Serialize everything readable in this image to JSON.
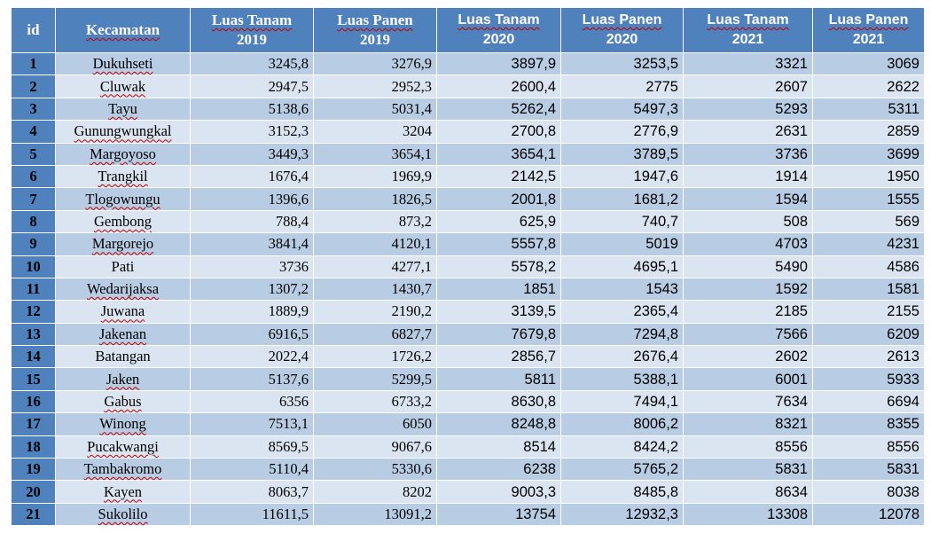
{
  "table": {
    "headers": {
      "id": "id",
      "kecamatan": "Kecamatan",
      "lt2019_a": "Luas Tanam",
      "lt2019_b": "2019",
      "lp2019_a": "Luas Panen",
      "lp2019_b": "2019",
      "lt2020_a": "Luas Tanam",
      "lt2020_b": "2020",
      "lp2020_a": "Luas Panen",
      "lp2020_b": "2020",
      "lt2021_a": "Luas Tanam",
      "lt2021_b": "2021",
      "lp2021_a": "Luas Panen",
      "lp2021_b": "2021"
    },
    "rows": [
      {
        "id": "1",
        "name": "Dukuhseti",
        "lt2019": "3245,8",
        "lp2019": "3276,9",
        "lt2020": "3897,9",
        "lp2020": "3253,5",
        "lt2021": "3321",
        "lp2021": "3069"
      },
      {
        "id": "2",
        "name": "Cluwak",
        "lt2019": "2947,5",
        "lp2019": "2952,3",
        "lt2020": "2600,4",
        "lp2020": "2775",
        "lt2021": "2607",
        "lp2021": "2622"
      },
      {
        "id": "3",
        "name": "Tayu",
        "lt2019": "5138,6",
        "lp2019": "5031,4",
        "lt2020": "5262,4",
        "lp2020": "5497,3",
        "lt2021": "5293",
        "lp2021": "5311"
      },
      {
        "id": "4",
        "name": "Gunungwungkal",
        "lt2019": "3152,3",
        "lp2019": "3204",
        "lt2020": "2700,8",
        "lp2020": "2776,9",
        "lt2021": "2631",
        "lp2021": "2859"
      },
      {
        "id": "5",
        "name": "Margoyoso",
        "lt2019": "3449,3",
        "lp2019": "3654,1",
        "lt2020": "3654,1",
        "lp2020": "3789,5",
        "lt2021": "3736",
        "lp2021": "3699"
      },
      {
        "id": "6",
        "name": "Trangkil",
        "lt2019": "1676,4",
        "lp2019": "1969,9",
        "lt2020": "2142,5",
        "lp2020": "1947,6",
        "lt2021": "1914",
        "lp2021": "1950"
      },
      {
        "id": "7",
        "name": "Tlogowungu",
        "lt2019": "1396,6",
        "lp2019": "1826,5",
        "lt2020": "2001,8",
        "lp2020": "1681,2",
        "lt2021": "1594",
        "lp2021": "1555"
      },
      {
        "id": "8",
        "name": "Gembong",
        "lt2019": "788,4",
        "lp2019": "873,2",
        "lt2020": "625,9",
        "lp2020": "740,7",
        "lt2021": "508",
        "lp2021": "569"
      },
      {
        "id": "9",
        "name": "Margorejo",
        "lt2019": "3841,4",
        "lp2019": "4120,1",
        "lt2020": "5557,8",
        "lp2020": "5019",
        "lt2021": "4703",
        "lp2021": "4231"
      },
      {
        "id": "10",
        "name": "Pati",
        "lt2019": "3736",
        "lp2019": "4277,1",
        "lt2020": "5578,2",
        "lp2020": "4695,1",
        "lt2021": "5490",
        "lp2021": "4586"
      },
      {
        "id": "11",
        "name": "Wedarijaksa",
        "lt2019": "1307,2",
        "lp2019": "1430,7",
        "lt2020": "1851",
        "lp2020": "1543",
        "lt2021": "1592",
        "lp2021": "1581"
      },
      {
        "id": "12",
        "name": "Juwana",
        "lt2019": "1889,9",
        "lp2019": "2190,2",
        "lt2020": "3139,5",
        "lp2020": "2365,4",
        "lt2021": "2185",
        "lp2021": "2155"
      },
      {
        "id": "13",
        "name": "Jakenan",
        "lt2019": "6916,5",
        "lp2019": "6827,7",
        "lt2020": "7679,8",
        "lp2020": "7294,8",
        "lt2021": "7566",
        "lp2021": "6209"
      },
      {
        "id": "14",
        "name": "Batangan",
        "lt2019": "2022,4",
        "lp2019": "1726,2",
        "lt2020": "2856,7",
        "lp2020": "2676,4",
        "lt2021": "2602",
        "lp2021": "2613"
      },
      {
        "id": "15",
        "name": "Jaken",
        "lt2019": "5137,6",
        "lp2019": "5299,5",
        "lt2020": "5811",
        "lp2020": "5388,1",
        "lt2021": "6001",
        "lp2021": "5933"
      },
      {
        "id": "16",
        "name": "Gabus",
        "lt2019": "6356",
        "lp2019": "6733,2",
        "lt2020": "8630,8",
        "lp2020": "7494,1",
        "lt2021": "7634",
        "lp2021": "6694"
      },
      {
        "id": "17",
        "name": "Winong",
        "lt2019": "7513,1",
        "lp2019": "6050",
        "lt2020": "8248,8",
        "lp2020": "8006,2",
        "lt2021": "8321",
        "lp2021": "8355"
      },
      {
        "id": "18",
        "name": "Pucakwangi",
        "lt2019": "8569,5",
        "lp2019": "9067,6",
        "lt2020": "8514",
        "lp2020": "8424,2",
        "lt2021": "8556",
        "lp2021": "8556"
      },
      {
        "id": "19",
        "name": "Tambakromo",
        "lt2019": "5110,4",
        "lp2019": "5330,6",
        "lt2020": "6238",
        "lp2020": "5765,2",
        "lt2021": "5831",
        "lp2021": "5831"
      },
      {
        "id": "20",
        "name": "Kayen",
        "lt2019": "8063,7",
        "lp2019": "8202",
        "lt2020": "9003,3",
        "lp2020": "8485,8",
        "lt2021": "8634",
        "lp2021": "8038"
      },
      {
        "id": "21",
        "name": "Sukolilo",
        "lt2019": "11611,5",
        "lp2019": "13091,2",
        "lt2020": "13754",
        "lp2020": "12932,3",
        "lt2021": "13308",
        "lp2021": "12078"
      }
    ]
  },
  "colors": {
    "header_bg": "#4f81bd",
    "header_text": "#ffffff",
    "row_odd": "#b8cce4",
    "row_even": "#dbe5f1",
    "spellcheck_underline": "#c00000"
  }
}
